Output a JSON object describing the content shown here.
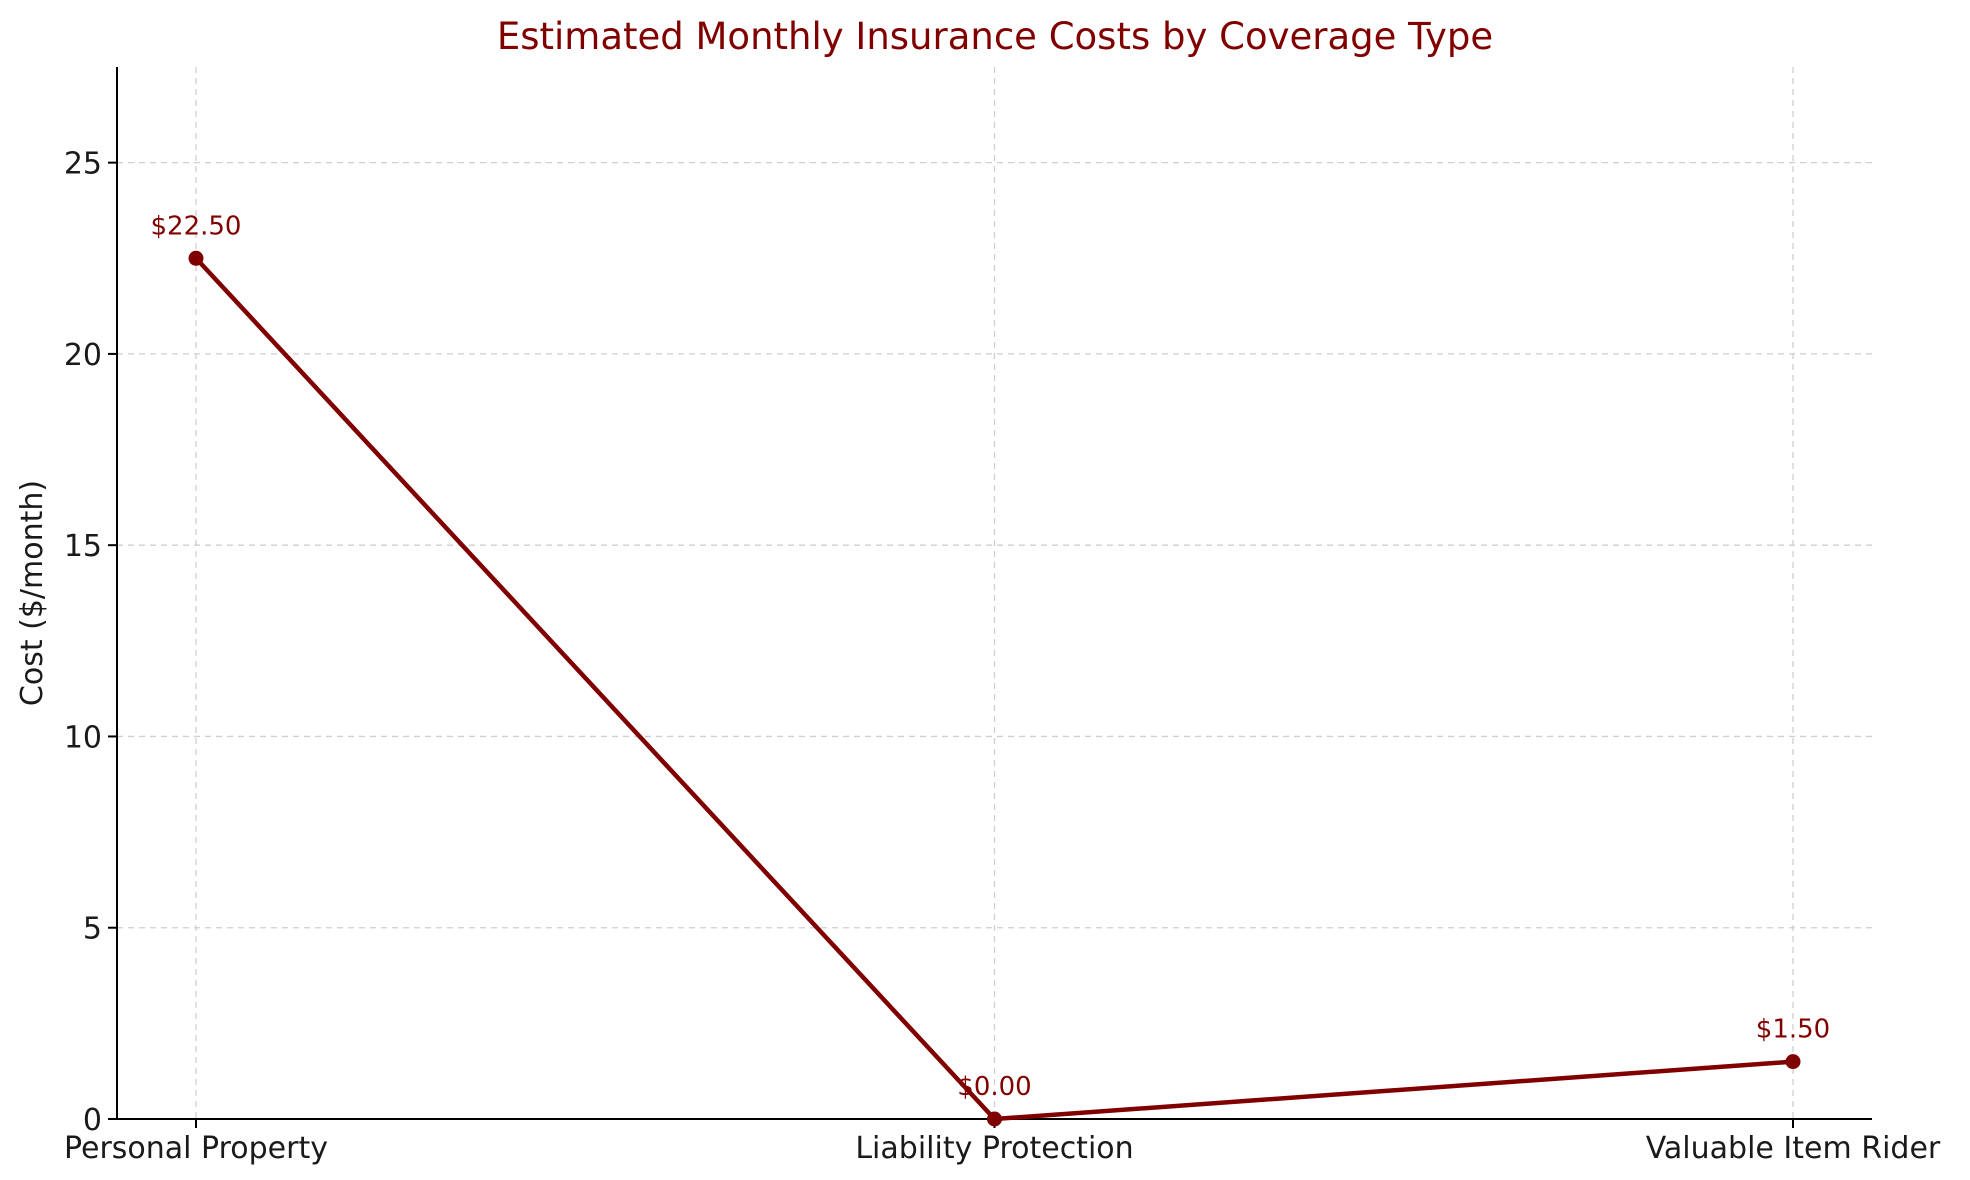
{
  "chart_data": {
    "type": "line",
    "title": "Estimated Monthly Insurance Costs by Coverage Type",
    "xlabel": "",
    "ylabel": "Cost ($/month)",
    "categories": [
      "Personal Property",
      "Liability Protection",
      "Valuable Item Rider"
    ],
    "series": [
      {
        "values": [
          22.5,
          0.0,
          1.5
        ],
        "data_labels": [
          "$22.50",
          "$0.00",
          "$1.50"
        ]
      }
    ],
    "ylim": [
      0,
      27.5
    ],
    "yticks": [
      0,
      5,
      10,
      15,
      20,
      25
    ],
    "grid": true,
    "legend": "none",
    "colors": {
      "series": "#800000",
      "title": "#800000",
      "grid": "#cfcfcf"
    }
  }
}
